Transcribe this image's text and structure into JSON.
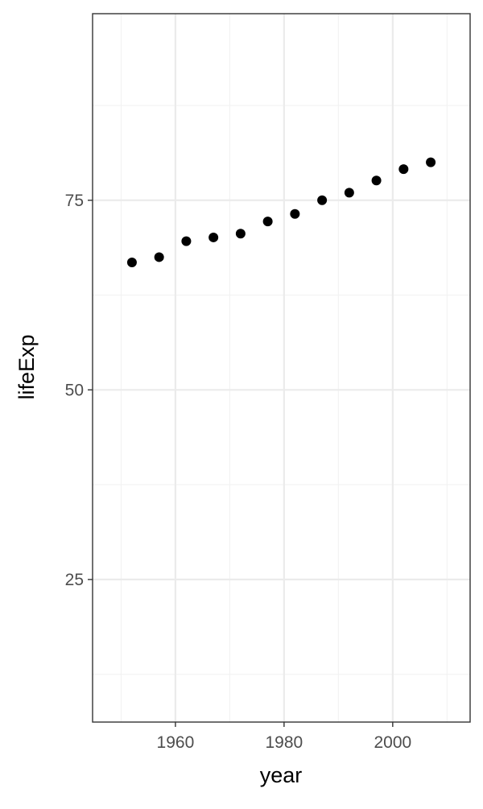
{
  "chart_data": {
    "type": "scatter",
    "xlabel": "year",
    "ylabel": "lifeExp",
    "x": [
      1952,
      1957,
      1962,
      1967,
      1972,
      1977,
      1982,
      1987,
      1992,
      1997,
      2002,
      2007
    ],
    "y": [
      66.8,
      67.5,
      69.6,
      70.1,
      70.6,
      72.2,
      73.2,
      75.0,
      76.0,
      77.6,
      79.1,
      80.0
    ],
    "xlim": [
      1944.75,
      2014.25
    ],
    "ylim": [
      6.2,
      99.6
    ],
    "x_ticks": [
      1960,
      1980,
      2000
    ],
    "x_tick_labels": [
      "1960",
      "1980",
      "2000"
    ],
    "y_ticks": [
      25,
      50,
      75
    ],
    "y_tick_labels": [
      "25",
      "50",
      "75"
    ],
    "x_minor_ticks": [
      1950,
      1970,
      1990,
      2010
    ],
    "y_minor_ticks": [
      12.5,
      37.5,
      62.5,
      87.5
    ],
    "grid": true,
    "legend": "none",
    "colors": {
      "point": "#000000",
      "grid_major": "#ebebeb",
      "grid_minor": "#f2f2f2",
      "panel_border": "#333333",
      "tick_text": "#4d4d4d",
      "title_text": "#000000"
    }
  }
}
